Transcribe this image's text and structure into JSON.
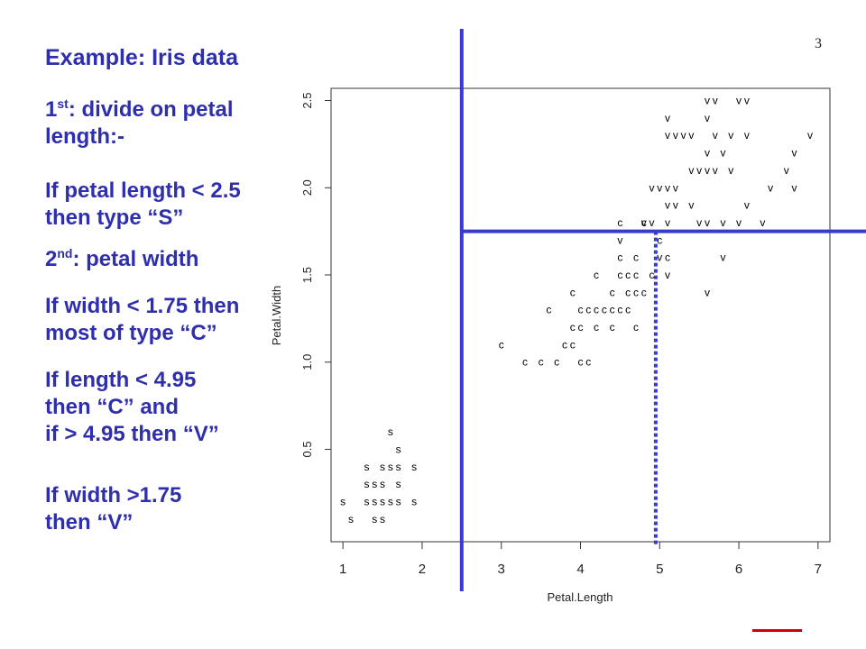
{
  "page_number": "3",
  "title": "Example: Iris data",
  "bullets": {
    "b1": {
      "line1_pre": "1",
      "line1_sup": "st",
      "line1_post": ": divide on petal",
      "line2": "length:-"
    },
    "b2": {
      "line1": "If petal length < 2.5",
      "line2": "then type “S”"
    },
    "b3": {
      "pre": "2",
      "sup": "nd",
      "post": ": petal width"
    },
    "b4": {
      "line1": "If width < 1.75 then",
      "line2": "most of type “C”"
    },
    "b5": {
      "line1": "If length < 4.95",
      "line2": "then “C” and",
      "line3": "if > 4.95 then “V”"
    },
    "b6": {
      "line1": "If width >1.75",
      "line2": "then “V”"
    }
  },
  "colors": {
    "text": "#2f2fae",
    "split_lines": "#3a3ad0",
    "points": "#000000",
    "logo": "#cc0000"
  },
  "chart_data": {
    "type": "scatter",
    "xlabel": "Petal.Length",
    "ylabel": "Petal.Width",
    "xlim": [
      0.85,
      7.15
    ],
    "ylim": [
      -0.03,
      2.57
    ],
    "x_ticks": [
      "1",
      "2",
      "3",
      "4",
      "5",
      "6",
      "7"
    ],
    "y_ticks": [
      "0.5",
      "1.0",
      "1.5",
      "2.0",
      "2.5"
    ],
    "series": [
      {
        "marker": "s",
        "points": [
          [
            1.6,
            0.6
          ],
          [
            1.7,
            0.5
          ],
          [
            1.3,
            0.4
          ],
          [
            1.5,
            0.4
          ],
          [
            1.6,
            0.4
          ],
          [
            1.7,
            0.4
          ],
          [
            1.9,
            0.4
          ],
          [
            1.3,
            0.3
          ],
          [
            1.4,
            0.3
          ],
          [
            1.5,
            0.3
          ],
          [
            1.7,
            0.3
          ],
          [
            1.0,
            0.2
          ],
          [
            1.3,
            0.2
          ],
          [
            1.4,
            0.2
          ],
          [
            1.5,
            0.2
          ],
          [
            1.6,
            0.2
          ],
          [
            1.7,
            0.2
          ],
          [
            1.9,
            0.2
          ],
          [
            1.1,
            0.1
          ],
          [
            1.4,
            0.1
          ],
          [
            1.5,
            0.1
          ]
        ]
      },
      {
        "marker": "c",
        "points": [
          [
            4.5,
            1.8
          ],
          [
            4.8,
            1.8
          ],
          [
            5.0,
            1.7
          ],
          [
            4.5,
            1.6
          ],
          [
            4.7,
            1.6
          ],
          [
            5.1,
            1.6
          ],
          [
            4.2,
            1.5
          ],
          [
            4.5,
            1.5
          ],
          [
            4.6,
            1.5
          ],
          [
            4.7,
            1.5
          ],
          [
            4.9,
            1.5
          ],
          [
            3.9,
            1.4
          ],
          [
            4.4,
            1.4
          ],
          [
            4.6,
            1.4
          ],
          [
            4.7,
            1.4
          ],
          [
            4.8,
            1.4
          ],
          [
            3.6,
            1.3
          ],
          [
            4.0,
            1.3
          ],
          [
            4.1,
            1.3
          ],
          [
            4.2,
            1.3
          ],
          [
            4.3,
            1.3
          ],
          [
            4.4,
            1.3
          ],
          [
            4.5,
            1.3
          ],
          [
            4.6,
            1.3
          ],
          [
            3.9,
            1.2
          ],
          [
            4.0,
            1.2
          ],
          [
            4.2,
            1.2
          ],
          [
            4.4,
            1.2
          ],
          [
            4.7,
            1.2
          ],
          [
            3.0,
            1.1
          ],
          [
            3.8,
            1.1
          ],
          [
            3.9,
            1.1
          ],
          [
            3.3,
            1.0
          ],
          [
            3.5,
            1.0
          ],
          [
            3.7,
            1.0
          ],
          [
            4.0,
            1.0
          ],
          [
            4.1,
            1.0
          ]
        ]
      },
      {
        "marker": "v",
        "points": [
          [
            5.6,
            2.5
          ],
          [
            5.7,
            2.5
          ],
          [
            6.0,
            2.5
          ],
          [
            6.1,
            2.5
          ],
          [
            5.1,
            2.4
          ],
          [
            5.6,
            2.4
          ],
          [
            5.1,
            2.3
          ],
          [
            5.2,
            2.3
          ],
          [
            5.3,
            2.3
          ],
          [
            5.4,
            2.3
          ],
          [
            5.7,
            2.3
          ],
          [
            5.9,
            2.3
          ],
          [
            6.1,
            2.3
          ],
          [
            6.9,
            2.3
          ],
          [
            5.6,
            2.2
          ],
          [
            5.8,
            2.2
          ],
          [
            6.7,
            2.2
          ],
          [
            5.4,
            2.1
          ],
          [
            5.5,
            2.1
          ],
          [
            5.6,
            2.1
          ],
          [
            5.7,
            2.1
          ],
          [
            5.9,
            2.1
          ],
          [
            6.6,
            2.1
          ],
          [
            4.9,
            2.0
          ],
          [
            5.0,
            2.0
          ],
          [
            5.1,
            2.0
          ],
          [
            5.2,
            2.0
          ],
          [
            6.4,
            2.0
          ],
          [
            6.7,
            2.0
          ],
          [
            5.1,
            1.9
          ],
          [
            5.2,
            1.9
          ],
          [
            5.4,
            1.9
          ],
          [
            6.1,
            1.9
          ],
          [
            4.8,
            1.8
          ],
          [
            4.9,
            1.8
          ],
          [
            5.1,
            1.8
          ],
          [
            5.5,
            1.8
          ],
          [
            5.6,
            1.8
          ],
          [
            5.8,
            1.8
          ],
          [
            6.0,
            1.8
          ],
          [
            6.3,
            1.8
          ],
          [
            4.5,
            1.7
          ],
          [
            5.0,
            1.6
          ],
          [
            5.1,
            1.5
          ],
          [
            5.8,
            1.6
          ],
          [
            5.6,
            1.4
          ]
        ]
      }
    ],
    "split_lines": [
      {
        "orientation": "vertical",
        "x": 2.5,
        "style": "solid"
      },
      {
        "orientation": "horizontal",
        "y": 1.75,
        "x_from": 2.5,
        "style": "solid"
      },
      {
        "orientation": "vertical",
        "x": 4.95,
        "y_to": 1.75,
        "style": "dotted"
      }
    ]
  }
}
